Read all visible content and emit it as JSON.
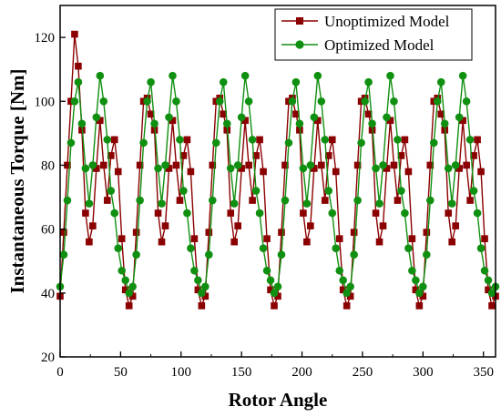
{
  "chart_data": {
    "type": "line",
    "title": "",
    "xlabel": "Rotor Angle",
    "ylabel": "Instantaneous Torque [Nm]",
    "xlim": [
      0,
      360
    ],
    "ylim": [
      20,
      130
    ],
    "xticks": [
      0,
      50,
      100,
      150,
      200,
      250,
      300,
      350
    ],
    "yticks": [
      20,
      40,
      60,
      80,
      100,
      120
    ],
    "grid": false,
    "legend_position": "top-right",
    "series": [
      {
        "name": "Unoptimized Model",
        "color": "#8b0000",
        "marker": "square",
        "period_deg": 60,
        "cycle_points": [
          [
            0,
            39
          ],
          [
            3,
            59
          ],
          [
            6,
            80
          ],
          [
            9,
            100
          ],
          [
            12,
            121
          ],
          [
            15,
            111
          ],
          [
            18,
            91
          ],
          [
            21,
            65
          ],
          [
            24,
            56
          ],
          [
            27,
            61
          ],
          [
            30,
            79
          ],
          [
            33,
            94
          ],
          [
            36,
            80
          ],
          [
            39,
            69
          ],
          [
            42,
            83
          ],
          [
            45,
            88
          ],
          [
            48,
            78
          ],
          [
            51,
            57
          ],
          [
            54,
            41
          ],
          [
            57,
            36
          ]
        ],
        "first_cycle_override": true
      },
      {
        "name": "Optimized Model",
        "color": "#109010",
        "marker": "circle",
        "period_deg": 60,
        "cycle_points": [
          [
            0,
            42
          ],
          [
            3,
            52
          ],
          [
            6,
            69
          ],
          [
            9,
            87
          ],
          [
            12,
            100
          ],
          [
            15,
            106
          ],
          [
            18,
            93
          ],
          [
            21,
            79
          ],
          [
            24,
            68
          ],
          [
            27,
            80
          ],
          [
            30,
            95
          ],
          [
            33,
            108
          ],
          [
            36,
            100
          ],
          [
            39,
            88
          ],
          [
            42,
            72
          ],
          [
            45,
            65
          ],
          [
            48,
            54
          ],
          [
            51,
            47
          ],
          [
            54,
            44
          ],
          [
            57,
            40
          ]
        ]
      }
    ]
  }
}
